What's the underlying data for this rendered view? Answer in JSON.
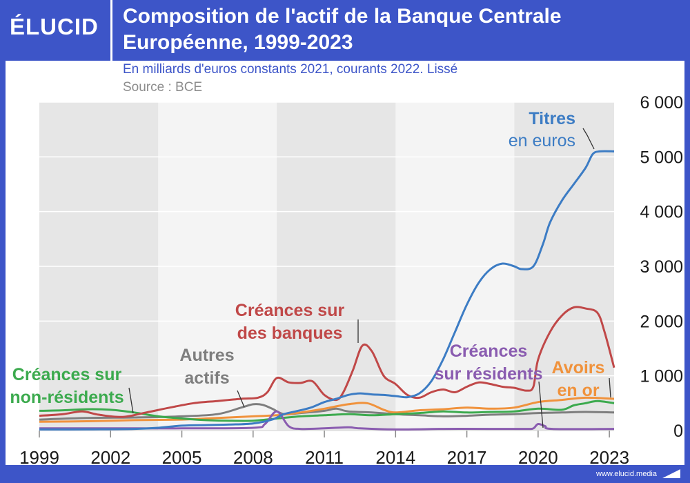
{
  "brand": {
    "logo": "ÉLUCID",
    "website": "www.elucid.media"
  },
  "chart_data": {
    "type": "line",
    "title": "Composition de l'actif de la Banque Centrale Européenne, 1999-2023",
    "subtitle": "En milliards d'euros constants 2021, courants 2022. Lissé",
    "source": "Source : BCE",
    "xlabel": "",
    "ylabel": "",
    "xlim": [
      1999,
      2023.2
    ],
    "ylim": [
      0,
      6000
    ],
    "x_ticks": [
      1999,
      2002,
      2005,
      2008,
      2011,
      2014,
      2017,
      2020,
      2023
    ],
    "x_tick_labels": [
      "1999",
      "2002",
      "2005",
      "2008",
      "2011",
      "2014",
      "2017",
      "2020",
      "2023"
    ],
    "y_ticks": [
      0,
      1000,
      2000,
      3000,
      4000,
      5000,
      6000
    ],
    "y_tick_labels": [
      "0",
      "1 000",
      "2 000",
      "3 000",
      "4 000",
      "5 000",
      "6 000"
    ],
    "y_axis_side": "right",
    "shaded_periods": [
      [
        1999,
        2004
      ],
      [
        2009,
        2014
      ],
      [
        2019,
        2023.2
      ]
    ],
    "grid": true,
    "series": [
      {
        "name": "Titres en euros",
        "label_lines": [
          "Titres",
          "en euros"
        ],
        "color": "#3c7cc4",
        "points": [
          [
            1999,
            20
          ],
          [
            2001,
            22
          ],
          [
            2003,
            30
          ],
          [
            2004,
            50
          ],
          [
            2005,
            90
          ],
          [
            2006,
            100
          ],
          [
            2007,
            110
          ],
          [
            2008,
            130
          ],
          [
            2008.8,
            200
          ],
          [
            2009.3,
            300
          ],
          [
            2010,
            370
          ],
          [
            2010.5,
            430
          ],
          [
            2011,
            520
          ],
          [
            2011.5,
            580
          ],
          [
            2012,
            650
          ],
          [
            2012.5,
            680
          ],
          [
            2013,
            660
          ],
          [
            2013.5,
            650
          ],
          [
            2014,
            630
          ],
          [
            2014.5,
            610
          ],
          [
            2015,
            680
          ],
          [
            2015.5,
            900
          ],
          [
            2016,
            1300
          ],
          [
            2016.5,
            1800
          ],
          [
            2017,
            2300
          ],
          [
            2017.5,
            2700
          ],
          [
            2018,
            2950
          ],
          [
            2018.5,
            3050
          ],
          [
            2019,
            3000
          ],
          [
            2019.3,
            2950
          ],
          [
            2019.8,
            3000
          ],
          [
            2020.2,
            3400
          ],
          [
            2020.5,
            3800
          ],
          [
            2021,
            4200
          ],
          [
            2021.5,
            4500
          ],
          [
            2022,
            4800
          ],
          [
            2022.3,
            5050
          ],
          [
            2022.6,
            5100
          ],
          [
            2023.2,
            5100
          ]
        ]
      },
      {
        "name": "Créances sur des banques",
        "label_lines": [
          "Créances sur",
          "des banques"
        ],
        "color": "#c04848",
        "points": [
          [
            1999,
            270
          ],
          [
            2000,
            300
          ],
          [
            2000.8,
            350
          ],
          [
            2001.5,
            290
          ],
          [
            2002.5,
            250
          ],
          [
            2003.5,
            330
          ],
          [
            2004.5,
            420
          ],
          [
            2005.5,
            500
          ],
          [
            2006.5,
            540
          ],
          [
            2007.5,
            580
          ],
          [
            2008.2,
            600
          ],
          [
            2008.6,
            700
          ],
          [
            2009,
            960
          ],
          [
            2009.5,
            880
          ],
          [
            2010,
            870
          ],
          [
            2010.5,
            900
          ],
          [
            2011,
            650
          ],
          [
            2011.5,
            560
          ],
          [
            2011.8,
            700
          ],
          [
            2012.2,
            1100
          ],
          [
            2012.6,
            1550
          ],
          [
            2013,
            1450
          ],
          [
            2013.5,
            1000
          ],
          [
            2014,
            850
          ],
          [
            2014.5,
            650
          ],
          [
            2015,
            600
          ],
          [
            2015.5,
            700
          ],
          [
            2016,
            750
          ],
          [
            2016.5,
            700
          ],
          [
            2017,
            800
          ],
          [
            2017.5,
            880
          ],
          [
            2018,
            850
          ],
          [
            2018.5,
            800
          ],
          [
            2019,
            780
          ],
          [
            2019.5,
            730
          ],
          [
            2019.8,
            800
          ],
          [
            2020,
            1300
          ],
          [
            2020.5,
            1800
          ],
          [
            2021,
            2100
          ],
          [
            2021.5,
            2250
          ],
          [
            2022,
            2230
          ],
          [
            2022.5,
            2150
          ],
          [
            2022.8,
            1800
          ],
          [
            2023.2,
            1150
          ]
        ]
      },
      {
        "name": "Créances sur résidents",
        "label_lines": [
          "Créances",
          "sur résidents"
        ],
        "color": "#8a5cb0",
        "points": [
          [
            1999,
            40
          ],
          [
            2003,
            40
          ],
          [
            2005,
            40
          ],
          [
            2008,
            50
          ],
          [
            2008.5,
            120
          ],
          [
            2009,
            350
          ],
          [
            2009.5,
            80
          ],
          [
            2010,
            30
          ],
          [
            2011,
            40
          ],
          [
            2012,
            60
          ],
          [
            2012.5,
            40
          ],
          [
            2014,
            20
          ],
          [
            2016,
            30
          ],
          [
            2018,
            30
          ],
          [
            2019.5,
            30
          ],
          [
            2019.8,
            40
          ],
          [
            2020,
            120
          ],
          [
            2020.3,
            80
          ],
          [
            2020.6,
            30
          ],
          [
            2023.2,
            30
          ]
        ]
      },
      {
        "name": "Autres actifs",
        "label_lines": [
          "Autres",
          "actifs"
        ],
        "color": "#7e7e7e",
        "points": [
          [
            1999,
            200
          ],
          [
            2001,
            230
          ],
          [
            2003,
            240
          ],
          [
            2005,
            260
          ],
          [
            2006.5,
            300
          ],
          [
            2007.5,
            420
          ],
          [
            2008,
            480
          ],
          [
            2008.4,
            470
          ],
          [
            2008.8,
            400
          ],
          [
            2009.3,
            300
          ],
          [
            2010,
            320
          ],
          [
            2011,
            360
          ],
          [
            2011.5,
            400
          ],
          [
            2012,
            350
          ],
          [
            2013,
            330
          ],
          [
            2014,
            300
          ],
          [
            2015,
            280
          ],
          [
            2016,
            260
          ],
          [
            2017,
            270
          ],
          [
            2018,
            290
          ],
          [
            2019,
            300
          ],
          [
            2020,
            320
          ],
          [
            2021,
            330
          ],
          [
            2022,
            340
          ],
          [
            2023.2,
            330
          ]
        ]
      },
      {
        "name": "Avoirs en or",
        "label_lines": [
          "Avoirs",
          "en or"
        ],
        "color": "#f0923c",
        "points": [
          [
            1999,
            160
          ],
          [
            2001,
            170
          ],
          [
            2003,
            190
          ],
          [
            2005,
            200
          ],
          [
            2006,
            220
          ],
          [
            2007,
            240
          ],
          [
            2008,
            260
          ],
          [
            2009,
            280
          ],
          [
            2010,
            330
          ],
          [
            2011,
            400
          ],
          [
            2012,
            480
          ],
          [
            2012.8,
            500
          ],
          [
            2013.5,
            380
          ],
          [
            2014,
            330
          ],
          [
            2015,
            370
          ],
          [
            2016,
            390
          ],
          [
            2017,
            420
          ],
          [
            2018,
            400
          ],
          [
            2019,
            420
          ],
          [
            2020,
            520
          ],
          [
            2021,
            560
          ],
          [
            2022,
            600
          ],
          [
            2023.2,
            580
          ]
        ]
      },
      {
        "name": "Créances sur non-résidents",
        "label_lines": [
          "Créances sur",
          "non-résidents"
        ],
        "color": "#3caa4e",
        "points": [
          [
            1999,
            360
          ],
          [
            2000,
            370
          ],
          [
            2001,
            390
          ],
          [
            2002,
            380
          ],
          [
            2003,
            330
          ],
          [
            2004,
            260
          ],
          [
            2005,
            220
          ],
          [
            2006,
            190
          ],
          [
            2007,
            180
          ],
          [
            2008,
            180
          ],
          [
            2009,
            220
          ],
          [
            2010,
            260
          ],
          [
            2011,
            280
          ],
          [
            2012,
            300
          ],
          [
            2013,
            280
          ],
          [
            2014,
            300
          ],
          [
            2015,
            320
          ],
          [
            2016,
            350
          ],
          [
            2017,
            330
          ],
          [
            2018,
            340
          ],
          [
            2019,
            350
          ],
          [
            2020,
            400
          ],
          [
            2021,
            380
          ],
          [
            2021.5,
            460
          ],
          [
            2022,
            500
          ],
          [
            2022.5,
            540
          ],
          [
            2023.2,
            500
          ]
        ]
      }
    ]
  }
}
